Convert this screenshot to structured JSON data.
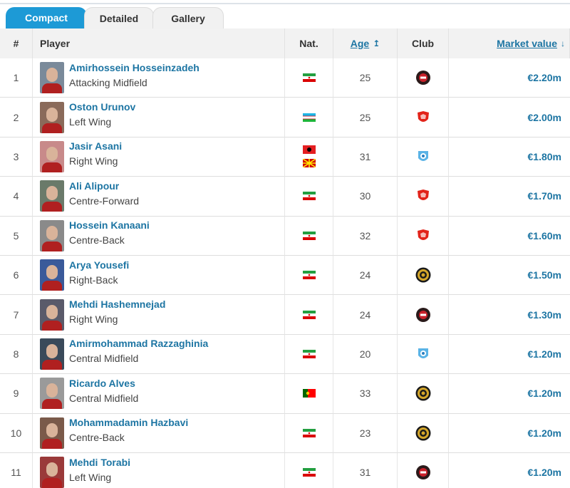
{
  "tabs": [
    "Compact",
    "Detailed",
    "Gallery"
  ],
  "table": {
    "headers": [
      "#",
      "Player",
      "Nat.",
      "Age",
      "Club",
      "Market value"
    ],
    "rows": [
      [
        1,
        "Amirhossein Hosseinzadeh",
        "Attacking Midfield",
        25,
        "€2.20m"
      ],
      [
        2,
        "Oston Urunov",
        "Left Wing",
        25,
        "€2.00m"
      ],
      [
        3,
        "Jasir Asani",
        "Right Wing",
        31,
        "€1.80m"
      ],
      [
        4,
        "Ali Alipour",
        "Centre-Forward",
        30,
        "€1.70m"
      ],
      [
        5,
        "Hossein Kanaani",
        "Centre-Back",
        32,
        "€1.60m"
      ],
      [
        6,
        "Arya Yousefi",
        "Right-Back",
        24,
        "€1.50m"
      ],
      [
        7,
        "Mehdi Hashemnejad",
        "Right Wing",
        24,
        "€1.30m"
      ],
      [
        8,
        "Amirmohammad Razzaghinia",
        "Central Midfield",
        20,
        "€1.20m"
      ],
      [
        9,
        "Ricardo Alves",
        "Central Midfield",
        33,
        "€1.20m"
      ],
      [
        10,
        "Mohammadamin Hazbavi",
        "Centre-Back",
        23,
        "€1.20m"
      ],
      [
        11,
        "Mehdi Torabi",
        "Left Wing",
        31,
        "€1.20m"
      ]
    ]
  }
}
